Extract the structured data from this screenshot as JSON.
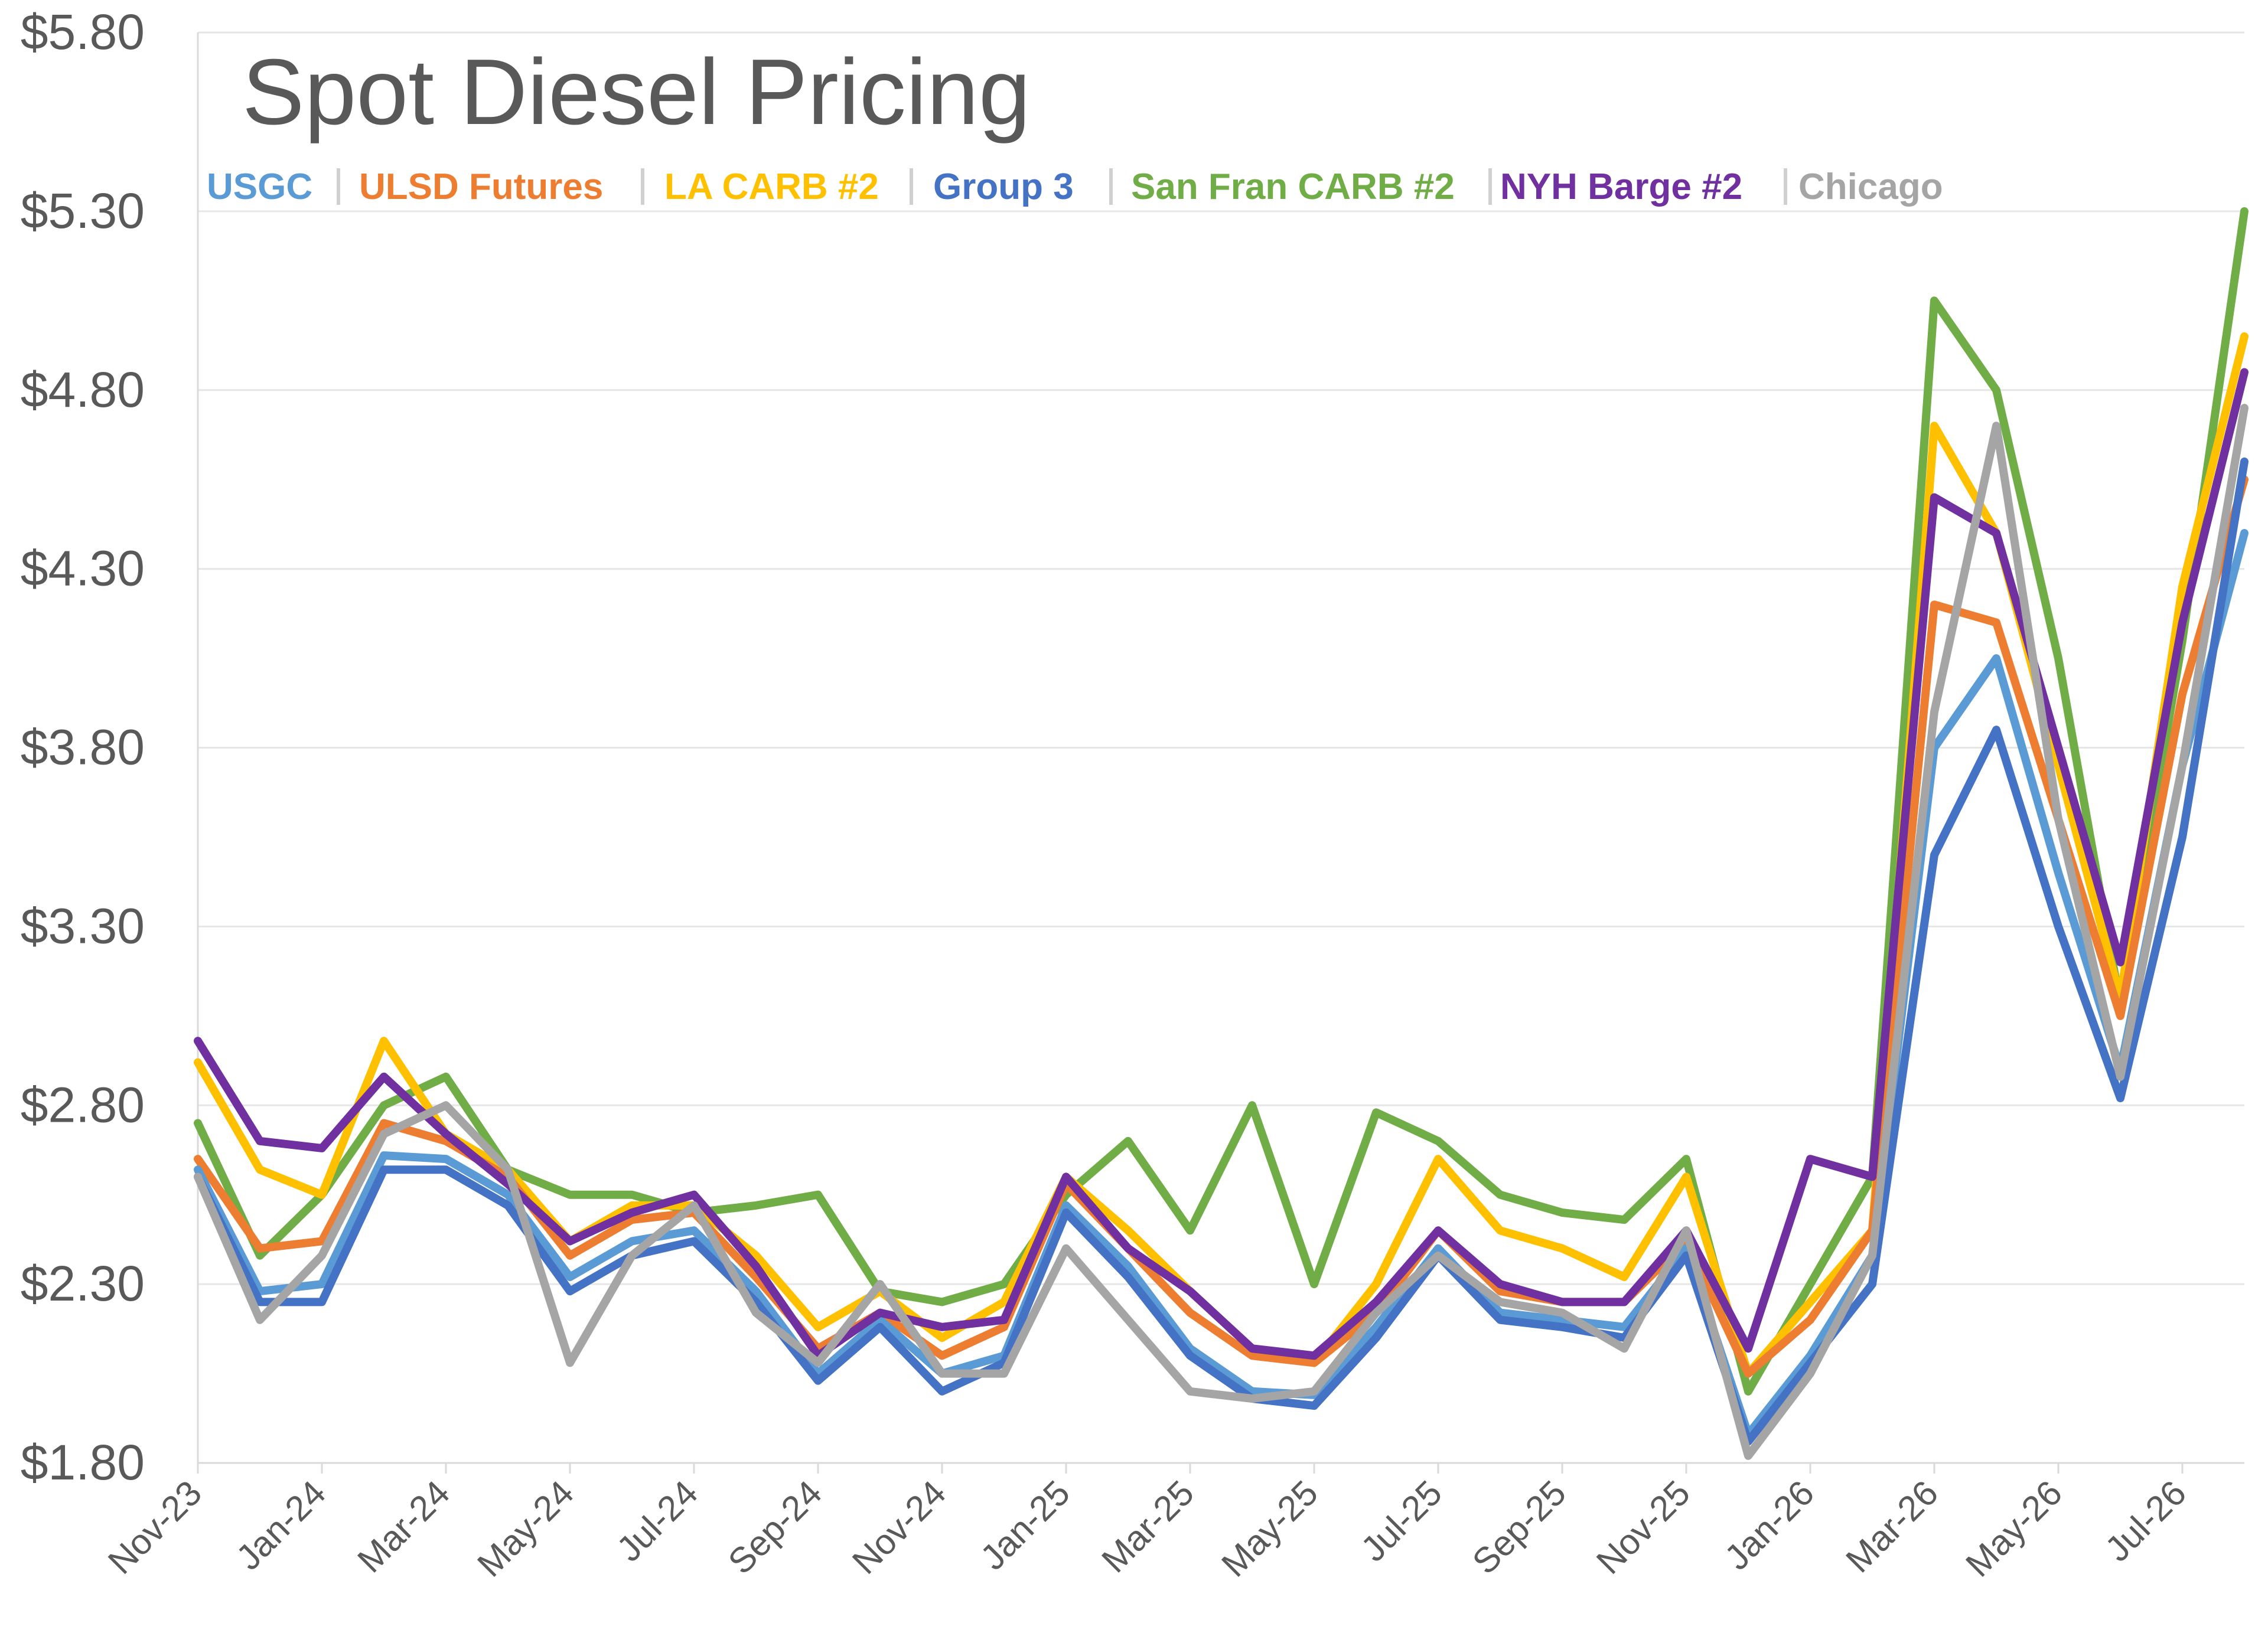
{
  "chart_data": {
    "type": "line",
    "title": "Spot Diesel Pricing",
    "xlabel": "",
    "ylabel": "",
    "ylim": [
      1.8,
      5.8
    ],
    "yticks": [
      "$1.80",
      "$2.30",
      "$2.80",
      "$3.30",
      "$3.80",
      "$4.30",
      "$4.80",
      "$5.30",
      "$5.80"
    ],
    "ytick_values": [
      1.8,
      2.3,
      2.8,
      3.3,
      3.8,
      4.3,
      4.8,
      5.3,
      5.8
    ],
    "x_labels": [
      "Nov-23",
      "Jan-24",
      "Mar-24",
      "May-24",
      "Jul-24",
      "Sep-24",
      "Nov-24",
      "Jan-25",
      "Mar-25",
      "May-25",
      "Jul-25",
      "Sep-25",
      "Nov-25",
      "Jan-26",
      "Mar-26",
      "May-26",
      "Jul-26"
    ],
    "legend_position": "top-left",
    "grid": "horizontal",
    "series_style": {
      "USGC": "#5B9BD5",
      "ULSD Futures": "#ED7D31",
      "LA CARB #2": "#FFC000",
      "Group 3": "#4472C4",
      "San Fran CARB #2": "#70AD47",
      "NYH Barge #2": "#7030A0",
      "Chicago": "#A5A5A5"
    },
    "x": [
      "Nov-23",
      "Dec-23",
      "Jan-24",
      "Feb-24",
      "Mar-24",
      "Apr-24",
      "May-24",
      "Jun-24",
      "Jul-24",
      "Aug-24",
      "Sep-24",
      "Oct-24",
      "Nov-24",
      "Dec-24",
      "Jan-25",
      "Feb-25",
      "Mar-25",
      "Apr-25",
      "May-25",
      "Jun-25",
      "Jul-25",
      "Aug-25",
      "Sep-25",
      "Oct-25",
      "Nov-25",
      "Dec-25",
      "Jan-26",
      "Feb-26",
      "Mar-26",
      "Apr-26",
      "May-26",
      "Jun-26",
      "Jul-26",
      "Aug-26"
    ],
    "series": [
      {
        "name": "USGC",
        "values": [
          2.62,
          2.28,
          2.3,
          2.66,
          2.65,
          2.55,
          2.32,
          2.42,
          2.45,
          2.28,
          2.05,
          2.2,
          2.05,
          2.1,
          2.52,
          2.35,
          2.12,
          2.0,
          1.99,
          2.18,
          2.4,
          2.22,
          2.2,
          2.18,
          2.4,
          1.88,
          2.1,
          2.38,
          3.8,
          4.05,
          3.45,
          2.9,
          3.75,
          4.4
        ]
      },
      {
        "name": "ULSD Futures",
        "values": [
          2.65,
          2.4,
          2.42,
          2.75,
          2.7,
          2.6,
          2.38,
          2.48,
          2.5,
          2.32,
          2.12,
          2.22,
          2.1,
          2.18,
          2.58,
          2.4,
          2.22,
          2.1,
          2.08,
          2.22,
          2.45,
          2.28,
          2.25,
          2.25,
          2.42,
          2.05,
          2.2,
          2.45,
          4.2,
          4.15,
          3.6,
          3.05,
          3.95,
          4.55
        ]
      },
      {
        "name": "LA CARB #2",
        "values": [
          2.92,
          2.62,
          2.55,
          2.98,
          2.72,
          2.62,
          2.42,
          2.52,
          2.52,
          2.38,
          2.18,
          2.28,
          2.15,
          2.25,
          2.6,
          2.45,
          2.28,
          2.12,
          2.08,
          2.3,
          2.65,
          2.45,
          2.4,
          2.32,
          2.6,
          2.05,
          2.25,
          2.45,
          4.7,
          4.4,
          3.75,
          3.1,
          4.25,
          4.95
        ]
      },
      {
        "name": "Group 3",
        "values": [
          2.6,
          2.25,
          2.25,
          2.62,
          2.62,
          2.52,
          2.28,
          2.38,
          2.42,
          2.25,
          2.03,
          2.18,
          2.0,
          2.08,
          2.5,
          2.32,
          2.1,
          1.98,
          1.96,
          2.15,
          2.38,
          2.2,
          2.18,
          2.15,
          2.38,
          1.86,
          2.08,
          2.3,
          3.5,
          3.85,
          3.3,
          2.82,
          3.55,
          4.6
        ]
      },
      {
        "name": "San Fran CARB #2",
        "values": [
          2.75,
          2.38,
          2.55,
          2.8,
          2.88,
          2.62,
          2.55,
          2.55,
          2.5,
          2.52,
          2.55,
          2.28,
          2.25,
          2.3,
          2.55,
          2.7,
          2.45,
          2.8,
          2.3,
          2.78,
          2.7,
          2.55,
          2.5,
          2.48,
          2.65,
          2.0,
          2.3,
          2.6,
          5.05,
          4.8,
          4.05,
          3.08,
          4.1,
          5.3
        ]
      },
      {
        "name": "NYH Barge #2",
        "values": [
          2.98,
          2.7,
          2.68,
          2.88,
          2.72,
          2.58,
          2.42,
          2.5,
          2.55,
          2.35,
          2.1,
          2.22,
          2.18,
          2.2,
          2.6,
          2.4,
          2.28,
          2.12,
          2.1,
          2.25,
          2.45,
          2.3,
          2.25,
          2.25,
          2.45,
          2.12,
          2.65,
          2.6,
          4.5,
          4.4,
          3.8,
          3.2,
          4.15,
          4.85
        ]
      },
      {
        "name": "Chicago",
        "values": [
          2.6,
          2.2,
          2.38,
          2.72,
          2.8,
          2.62,
          2.08,
          2.38,
          2.52,
          2.22,
          2.08,
          2.3,
          2.05,
          2.05,
          2.4,
          2.2,
          2.0,
          1.98,
          2.0,
          2.22,
          2.38,
          2.25,
          2.22,
          2.12,
          2.45,
          1.82,
          2.05,
          2.38,
          3.9,
          4.7,
          3.6,
          2.88,
          3.75,
          4.75
        ]
      }
    ]
  }
}
